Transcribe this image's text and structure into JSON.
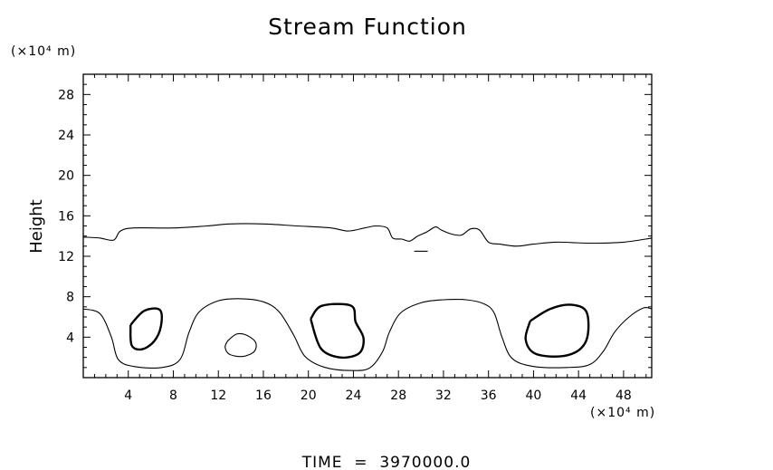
{
  "chart_data": {
    "type": "contour",
    "title": "Stream Function",
    "ylabel": "Height",
    "y_unit": "(×10⁴ m)",
    "x_unit": "(×10⁴ m)",
    "footer": "TIME  =  3970000.0",
    "xlim": [
      0,
      50.5
    ],
    "ylim": [
      0,
      30
    ],
    "x_ticks": [
      4,
      8,
      12,
      16,
      20,
      24,
      28,
      32,
      36,
      40,
      44,
      48
    ],
    "y_ticks": [
      4,
      8,
      12,
      16,
      20,
      24,
      28
    ],
    "contours": [
      {
        "id": "upper-contour",
        "weight": "thin",
        "points": [
          [
            0,
            13.9
          ],
          [
            1.5,
            13.8
          ],
          [
            2.7,
            13.6
          ],
          [
            3.3,
            14.5
          ],
          [
            4.5,
            14.8
          ],
          [
            8,
            14.8
          ],
          [
            11,
            15
          ],
          [
            13,
            15.2
          ],
          [
            16,
            15.2
          ],
          [
            19,
            15
          ],
          [
            22,
            14.8
          ],
          [
            23.5,
            14.5
          ],
          [
            25,
            14.8
          ],
          [
            26,
            15
          ],
          [
            27,
            14.8
          ],
          [
            27.5,
            13.8
          ],
          [
            28.3,
            13.7
          ],
          [
            29,
            13.5
          ],
          [
            29.7,
            14
          ],
          [
            30.5,
            14.4
          ],
          [
            31.3,
            14.9
          ],
          [
            31.8,
            14.6
          ],
          [
            32.7,
            14.2
          ],
          [
            33.6,
            14.1
          ],
          [
            34.4,
            14.7
          ],
          [
            35.2,
            14.6
          ],
          [
            36,
            13.4
          ],
          [
            37,
            13.2
          ],
          [
            38.5,
            13
          ],
          [
            40,
            13.2
          ],
          [
            42,
            13.4
          ],
          [
            45,
            13.3
          ],
          [
            48,
            13.4
          ],
          [
            50.5,
            13.8
          ]
        ]
      },
      {
        "id": "lower-left-contour",
        "weight": "thin",
        "points": [
          [
            0,
            6.8
          ],
          [
            1.5,
            6.3
          ],
          [
            2.5,
            4
          ],
          [
            3.1,
            1.8
          ],
          [
            4.5,
            1.1
          ],
          [
            7,
            1
          ],
          [
            8.6,
            1.8
          ],
          [
            9.4,
            4.5
          ],
          [
            10.3,
            6.5
          ],
          [
            12,
            7.6
          ],
          [
            14,
            7.8
          ],
          [
            16,
            7.5
          ],
          [
            17.4,
            6.5
          ],
          [
            18.7,
            4.2
          ],
          [
            19.7,
            2.1
          ],
          [
            21.5,
            1
          ],
          [
            24,
            0.7
          ],
          [
            25.5,
            1
          ],
          [
            26.6,
            2.6
          ],
          [
            27.2,
            4.5
          ],
          [
            28.2,
            6.4
          ],
          [
            30,
            7.4
          ],
          [
            32,
            7.7
          ],
          [
            34,
            7.7
          ],
          [
            35.6,
            7.3
          ],
          [
            36.5,
            6.4
          ],
          [
            37.2,
            4
          ],
          [
            38.1,
            1.9
          ],
          [
            40,
            1.1
          ],
          [
            43,
            1
          ],
          [
            45,
            1.3
          ],
          [
            46.2,
            2.6
          ],
          [
            47.2,
            4.5
          ],
          [
            48.5,
            6
          ],
          [
            49.8,
            6.9
          ],
          [
            50.5,
            6.8
          ]
        ]
      },
      {
        "id": "small-contour",
        "weight": "thin",
        "points": [
          [
            12.8,
            3.6
          ],
          [
            13.6,
            4.3
          ],
          [
            14.5,
            4.2
          ],
          [
            15.3,
            3.5
          ],
          [
            15.2,
            2.6
          ],
          [
            14.2,
            2.1
          ],
          [
            13,
            2.3
          ],
          [
            12.6,
            3
          ],
          [
            12.8,
            3.6
          ]
        ]
      },
      {
        "id": "eddy-1",
        "weight": "bold",
        "points": [
          [
            4.2,
            5.2
          ],
          [
            5.4,
            6.6
          ],
          [
            6.8,
            6.7
          ],
          [
            6.9,
            5.1
          ],
          [
            6.3,
            3.6
          ],
          [
            5.2,
            2.8
          ],
          [
            4.3,
            3.2
          ],
          [
            4.2,
            5.2
          ]
        ]
      },
      {
        "id": "eddy-2",
        "weight": "bold",
        "points": [
          [
            20.2,
            5.8
          ],
          [
            21.2,
            7.1
          ],
          [
            23.8,
            7.1
          ],
          [
            24.2,
            5.5
          ],
          [
            24.9,
            3.9
          ],
          [
            24.5,
            2.4
          ],
          [
            22.8,
            2
          ],
          [
            21.1,
            2.9
          ],
          [
            20.2,
            5.8
          ]
        ]
      },
      {
        "id": "eddy-3",
        "weight": "bold",
        "points": [
          [
            39.7,
            5.6
          ],
          [
            41.5,
            6.8
          ],
          [
            43.4,
            7.2
          ],
          [
            44.7,
            6.5
          ],
          [
            44.8,
            4.1
          ],
          [
            44,
            2.7
          ],
          [
            42.3,
            2.1
          ],
          [
            40.1,
            2.4
          ],
          [
            39.3,
            3.8
          ],
          [
            39.7,
            5.6
          ]
        ]
      },
      {
        "id": "mark",
        "weight": "thin",
        "points": [
          [
            29.4,
            12.5
          ],
          [
            30.6,
            12.5
          ]
        ]
      }
    ]
  }
}
